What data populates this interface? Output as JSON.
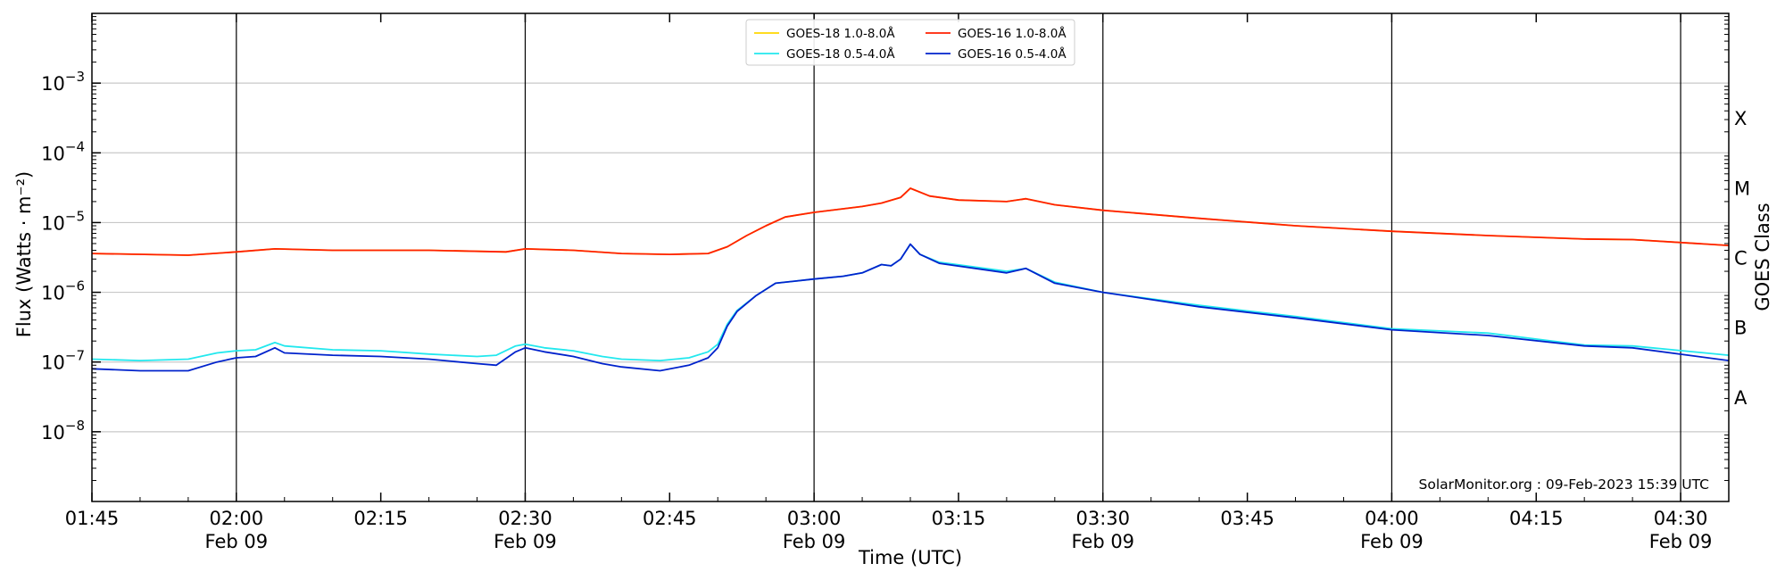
{
  "chart_data": {
    "type": "line",
    "ylabel": "Flux (Watts · m⁻²)",
    "xlabel": "Time (UTC)",
    "right_ylabel": "GOES Class",
    "watermark": "SolarMonitor.org : 09-Feb-2023 15:39 UTC",
    "y_scale": "log",
    "ylim": [
      1e-09,
      0.01
    ],
    "xlim": [
      "01:45",
      "04:35"
    ],
    "grid": "horizontal",
    "legend_position": "top-center",
    "y_ticks": [
      {
        "value": 1e-08,
        "base": "10",
        "exp": "−8"
      },
      {
        "value": 1e-07,
        "base": "10",
        "exp": "−7"
      },
      {
        "value": 1e-06,
        "base": "10",
        "exp": "−6"
      },
      {
        "value": 1e-05,
        "base": "10",
        "exp": "−5"
      },
      {
        "value": 0.0001,
        "base": "10",
        "exp": "−4"
      },
      {
        "value": 0.001,
        "base": "10",
        "exp": "−3"
      }
    ],
    "class_labels": [
      {
        "label": "X",
        "value": 0.000316
      },
      {
        "label": "M",
        "value": 3.16e-05
      },
      {
        "label": "C",
        "value": 3.16e-06
      },
      {
        "label": "B",
        "value": 3.16e-07
      },
      {
        "label": "A",
        "value": 3.16e-08
      }
    ],
    "x_ticks": [
      {
        "time": "01:45",
        "label": "01:45",
        "sub": ""
      },
      {
        "time": "02:00",
        "label": "02:00",
        "sub": "Feb 09"
      },
      {
        "time": "02:15",
        "label": "02:15",
        "sub": ""
      },
      {
        "time": "02:30",
        "label": "02:30",
        "sub": "Feb 09"
      },
      {
        "time": "02:45",
        "label": "02:45",
        "sub": ""
      },
      {
        "time": "03:00",
        "label": "03:00",
        "sub": "Feb 09"
      },
      {
        "time": "03:15",
        "label": "03:15",
        "sub": ""
      },
      {
        "time": "03:30",
        "label": "03:30",
        "sub": "Feb 09"
      },
      {
        "time": "03:45",
        "label": "03:45",
        "sub": ""
      },
      {
        "time": "04:00",
        "label": "04:00",
        "sub": "Feb 09"
      },
      {
        "time": "04:15",
        "label": "04:15",
        "sub": ""
      },
      {
        "time": "04:30",
        "label": "04:30",
        "sub": "Feb 09"
      }
    ],
    "vertical_lines": [
      "02:00",
      "02:30",
      "03:00",
      "03:30",
      "04:00",
      "04:30"
    ],
    "legend": [
      {
        "name": "GOES-18 1.0-8.0Å",
        "color": "#ffd700"
      },
      {
        "name": "GOES-16 1.0-8.0Å",
        "color": "#ff2000"
      },
      {
        "name": "GOES-18 0.5-4.0Å",
        "color": "#22e8ee"
      },
      {
        "name": "GOES-16 0.5-4.0Å",
        "color": "#0022cc"
      }
    ],
    "series": [
      {
        "name": "GOES-18 1.0-8.0Å",
        "color": "#ffd700",
        "x": [
          "01:45",
          "01:55",
          "02:00",
          "02:04",
          "02:10",
          "02:20",
          "02:28",
          "02:30",
          "02:35",
          "02:40",
          "02:45",
          "02:49",
          "02:51",
          "02:53",
          "02:55",
          "02:57",
          "03:00",
          "03:05",
          "03:07",
          "03:09",
          "03:10",
          "03:12",
          "03:15",
          "03:20",
          "03:22",
          "03:25",
          "03:30",
          "03:40",
          "03:50",
          "04:00",
          "04:10",
          "04:20",
          "04:25",
          "04:35"
        ],
        "values": [
          3.6e-06,
          3.4e-06,
          3.8e-06,
          4.2e-06,
          4e-06,
          4e-06,
          3.8e-06,
          4.2e-06,
          4e-06,
          3.6e-06,
          3.5e-06,
          3.6e-06,
          4.5e-06,
          6.5e-06,
          9e-06,
          1.2e-05,
          1.4e-05,
          1.7e-05,
          1.9e-05,
          2.3e-05,
          3.1e-05,
          2.4e-05,
          2.1e-05,
          2e-05,
          2.2e-05,
          1.8e-05,
          1.5e-05,
          1.15e-05,
          9e-06,
          7.5e-06,
          6.5e-06,
          5.8e-06,
          5.7e-06,
          4.7e-06
        ]
      },
      {
        "name": "GOES-16 1.0-8.0Å",
        "color": "#ff2000",
        "x": [
          "01:45",
          "01:55",
          "02:00",
          "02:04",
          "02:10",
          "02:20",
          "02:28",
          "02:30",
          "02:35",
          "02:40",
          "02:45",
          "02:49",
          "02:51",
          "02:53",
          "02:55",
          "02:57",
          "03:00",
          "03:05",
          "03:07",
          "03:09",
          "03:10",
          "03:12",
          "03:15",
          "03:20",
          "03:22",
          "03:25",
          "03:30",
          "03:40",
          "03:50",
          "04:00",
          "04:10",
          "04:20",
          "04:25",
          "04:35"
        ],
        "values": [
          3.6e-06,
          3.4e-06,
          3.8e-06,
          4.2e-06,
          4e-06,
          4e-06,
          3.8e-06,
          4.2e-06,
          4e-06,
          3.6e-06,
          3.5e-06,
          3.6e-06,
          4.5e-06,
          6.5e-06,
          9e-06,
          1.2e-05,
          1.4e-05,
          1.7e-05,
          1.9e-05,
          2.3e-05,
          3.1e-05,
          2.4e-05,
          2.1e-05,
          2e-05,
          2.2e-05,
          1.8e-05,
          1.5e-05,
          1.15e-05,
          9e-06,
          7.5e-06,
          6.5e-06,
          5.8e-06,
          5.7e-06,
          4.7e-06
        ]
      },
      {
        "name": "GOES-18 0.5-4.0Å",
        "color": "#22e8ee",
        "x": [
          "01:45",
          "01:50",
          "01:55",
          "01:58",
          "02:00",
          "02:02",
          "02:04",
          "02:05",
          "02:10",
          "02:15",
          "02:20",
          "02:25",
          "02:27",
          "02:29",
          "02:30",
          "02:32",
          "02:35",
          "02:38",
          "02:40",
          "02:44",
          "02:47",
          "02:49",
          "02:50",
          "02:51",
          "02:52",
          "02:54",
          "02:56",
          "03:00",
          "03:03",
          "03:05",
          "03:07",
          "03:08",
          "03:09",
          "03:10",
          "03:11",
          "03:13",
          "03:20",
          "03:22",
          "03:25",
          "03:30",
          "03:40",
          "03:50",
          "04:00",
          "04:10",
          "04:20",
          "04:25",
          "04:35"
        ],
        "values": [
          1.1e-07,
          1.05e-07,
          1.1e-07,
          1.35e-07,
          1.45e-07,
          1.5e-07,
          1.9e-07,
          1.7e-07,
          1.5e-07,
          1.45e-07,
          1.3e-07,
          1.2e-07,
          1.25e-07,
          1.7e-07,
          1.8e-07,
          1.6e-07,
          1.45e-07,
          1.2e-07,
          1.1e-07,
          1.05e-07,
          1.15e-07,
          1.4e-07,
          1.8e-07,
          3.5e-07,
          5.5e-07,
          9e-07,
          1.35e-06,
          1.55e-06,
          1.7e-06,
          1.9e-06,
          2.5e-06,
          2.4e-06,
          3e-06,
          4.9e-06,
          3.5e-06,
          2.7e-06,
          2e-06,
          2.2e-06,
          1.4e-06,
          1e-06,
          6.5e-07,
          4.5e-07,
          3e-07,
          2.6e-07,
          1.75e-07,
          1.7e-07,
          1.25e-07
        ]
      },
      {
        "name": "GOES-16 0.5-4.0Å",
        "color": "#0022cc",
        "x": [
          "01:45",
          "01:50",
          "01:55",
          "01:58",
          "02:00",
          "02:02",
          "02:04",
          "02:05",
          "02:10",
          "02:15",
          "02:20",
          "02:25",
          "02:27",
          "02:29",
          "02:30",
          "02:32",
          "02:35",
          "02:38",
          "02:40",
          "02:44",
          "02:47",
          "02:49",
          "02:50",
          "02:51",
          "02:52",
          "02:54",
          "02:56",
          "03:00",
          "03:03",
          "03:05",
          "03:07",
          "03:08",
          "03:09",
          "03:10",
          "03:11",
          "03:13",
          "03:20",
          "03:22",
          "03:25",
          "03:30",
          "03:40",
          "03:50",
          "04:00",
          "04:10",
          "04:20",
          "04:25",
          "04:35"
        ],
        "values": [
          8e-08,
          7.5e-08,
          7.5e-08,
          1e-07,
          1.15e-07,
          1.2e-07,
          1.6e-07,
          1.35e-07,
          1.25e-07,
          1.2e-07,
          1.1e-07,
          9.5e-08,
          9e-08,
          1.4e-07,
          1.6e-07,
          1.4e-07,
          1.2e-07,
          9.5e-08,
          8.5e-08,
          7.5e-08,
          9e-08,
          1.15e-07,
          1.6e-07,
          3.3e-07,
          5.3e-07,
          9e-07,
          1.35e-06,
          1.55e-06,
          1.7e-06,
          1.9e-06,
          2.5e-06,
          2.4e-06,
          3e-06,
          4.9e-06,
          3.5e-06,
          2.6e-06,
          1.9e-06,
          2.2e-06,
          1.35e-06,
          1e-06,
          6.2e-07,
          4.3e-07,
          2.9e-07,
          2.4e-07,
          1.7e-07,
          1.6e-07,
          1.05e-07
        ]
      }
    ]
  }
}
